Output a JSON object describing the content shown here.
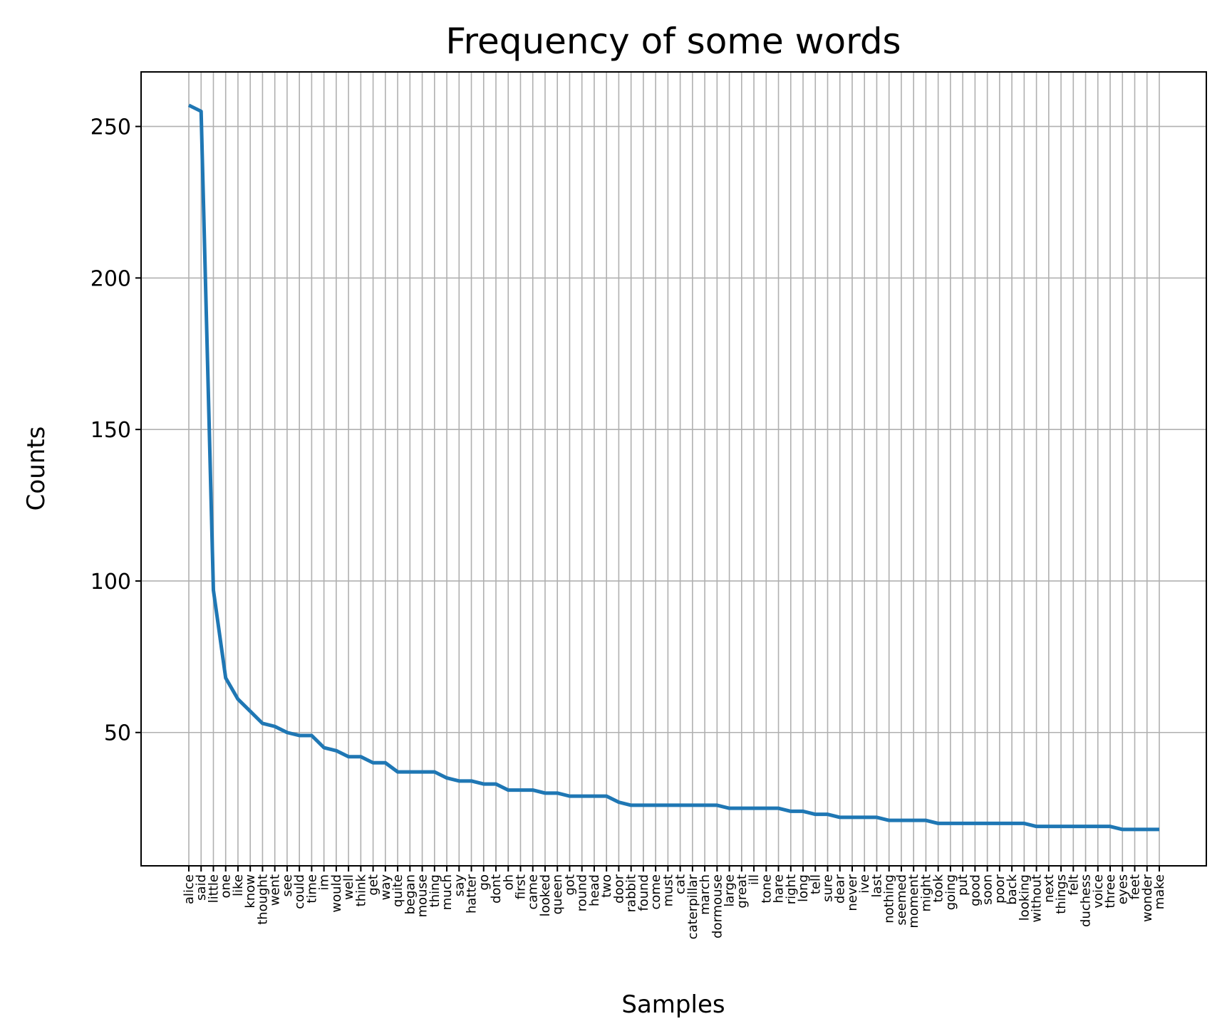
{
  "chart_data": {
    "type": "line",
    "title": "Frequency of some words",
    "xlabel": "Samples",
    "ylabel": "Counts",
    "grid": true,
    "ylim": [
      6,
      268
    ],
    "yticks": [
      50,
      100,
      150,
      200,
      250
    ],
    "categories": [
      "alice",
      "said",
      "little",
      "one",
      "like",
      "know",
      "thought",
      "went",
      "see",
      "could",
      "time",
      "im",
      "would",
      "well",
      "think",
      "get",
      "way",
      "quite",
      "began",
      "mouse",
      "thing",
      "much",
      "say",
      "hatter",
      "go",
      "dont",
      "oh",
      "first",
      "came",
      "looked",
      "queen",
      "got",
      "round",
      "head",
      "two",
      "door",
      "rabbit",
      "found",
      "come",
      "must",
      "cat",
      "caterpillar",
      "march",
      "dormouse",
      "large",
      "great",
      "ill",
      "tone",
      "hare",
      "right",
      "long",
      "tell",
      "sure",
      "dear",
      "never",
      "ive",
      "last",
      "nothing",
      "seemed",
      "moment",
      "might",
      "took",
      "going",
      "put",
      "good",
      "soon",
      "poor",
      "back",
      "looking",
      "without",
      "next",
      "things",
      "felt",
      "duchess",
      "voice",
      "three",
      "eyes",
      "feet",
      "wonder",
      "make"
    ],
    "series": [
      {
        "color": "#1f77b4",
        "values": [
          257,
          255,
          97,
          68,
          61,
          57,
          53,
          52,
          50,
          49,
          49,
          45,
          44,
          42,
          42,
          40,
          40,
          37,
          37,
          37,
          37,
          35,
          34,
          34,
          33,
          33,
          31,
          31,
          31,
          30,
          30,
          29,
          29,
          29,
          29,
          27,
          26,
          26,
          26,
          26,
          26,
          26,
          26,
          26,
          25,
          25,
          25,
          25,
          25,
          24,
          24,
          23,
          23,
          22,
          22,
          22,
          22,
          21,
          21,
          21,
          21,
          20,
          20,
          20,
          20,
          20,
          20,
          20,
          20,
          19,
          19,
          19,
          19,
          19,
          19,
          19,
          18,
          18,
          18,
          18
        ]
      }
    ]
  }
}
